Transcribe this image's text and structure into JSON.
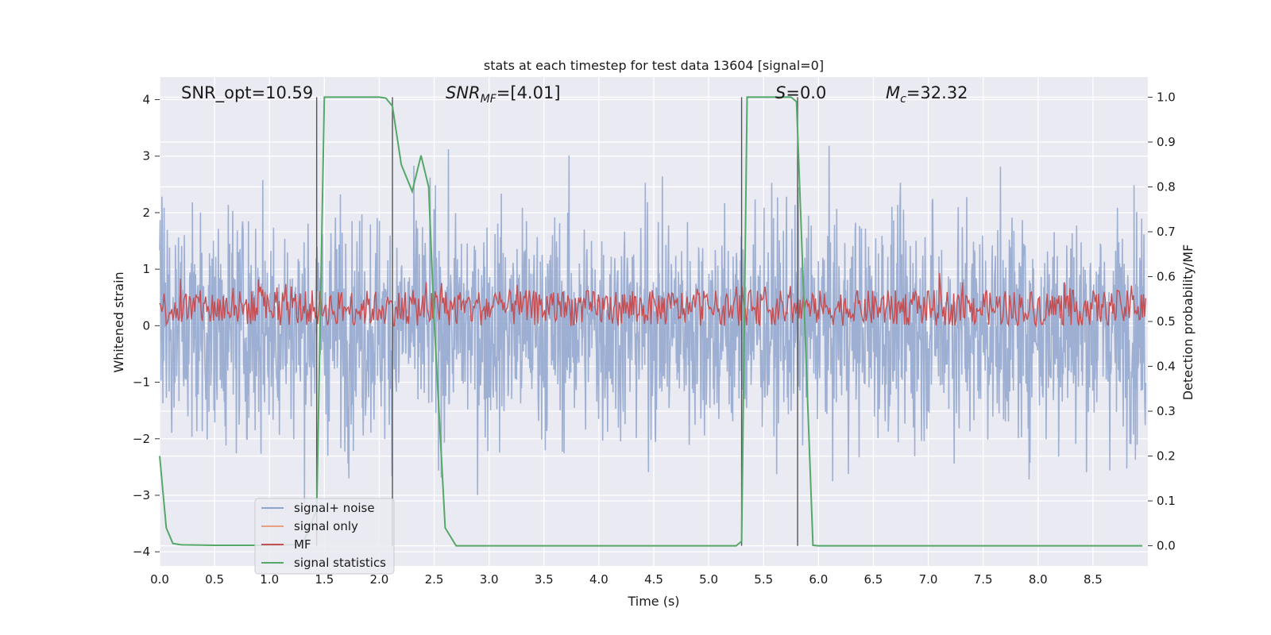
{
  "chart_data": {
    "type": "line",
    "title": "stats at each timestep for test data 13604 [signal=0]",
    "xlabel": "Time (s)",
    "ylabel": "Whitened strain",
    "y2label": "Detection probability/MF",
    "xlim": [
      0.0,
      9.0
    ],
    "ylim": [
      -4.25,
      4.4
    ],
    "y2lim": [
      -0.045,
      1.045
    ],
    "xticks": [
      "0.0",
      "0.5",
      "1.0",
      "1.5",
      "2.0",
      "2.5",
      "3.0",
      "3.5",
      "4.0",
      "4.5",
      "5.0",
      "5.5",
      "6.0",
      "6.5",
      "7.0",
      "7.5",
      "8.0",
      "8.5"
    ],
    "yticks": [
      "4",
      "3",
      "2",
      "1",
      "0",
      "−1",
      "−2",
      "−3",
      "−4"
    ],
    "y2ticks": [
      "1.0",
      "0.9",
      "0.8",
      "0.7",
      "0.6",
      "0.5",
      "0.4",
      "0.3",
      "0.2",
      "0.1",
      "0.0"
    ],
    "grid": true,
    "legend_position": "lower-left",
    "annotations": [
      {
        "text": "SNR_opt=10.59"
      },
      {
        "text": "SNR_MF=[4.01]"
      },
      {
        "text": "S=0.0"
      },
      {
        "text": "M_c=32.32"
      }
    ],
    "series": [
      {
        "name": "signal+ noise",
        "axis": "left",
        "color": "#8fa4cc",
        "description_envelope": {
          "typical_range": [
            -1.6,
            1.7
          ],
          "peak_range": [
            -3.8,
            3.4
          ]
        }
      },
      {
        "name": "signal only",
        "axis": "left",
        "color": "#e8a17f",
        "x": [],
        "y": []
      },
      {
        "name": "MF",
        "axis": "right",
        "color": "#c44e52",
        "typical_range": [
          0.5,
          0.58
        ]
      },
      {
        "name": "signal statistics",
        "axis": "right",
        "color": "#55a868",
        "x": [
          0.0,
          0.06,
          0.12,
          0.2,
          0.5,
          1.0,
          1.3,
          1.43,
          1.5,
          1.55,
          1.7,
          2.0,
          2.06,
          2.12,
          2.2,
          2.3,
          2.38,
          2.45,
          2.5,
          2.6,
          2.7,
          3.0,
          4.0,
          5.0,
          5.25,
          5.3,
          5.35,
          5.4,
          5.5,
          5.75,
          5.8,
          5.95,
          6.0,
          7.0,
          8.0,
          8.95
        ],
        "y": [
          0.2,
          0.04,
          0.005,
          0.002,
          0.001,
          0.001,
          0.003,
          0.08,
          1.0,
          1.0,
          1.0,
          1.0,
          0.998,
          0.98,
          0.85,
          0.79,
          0.87,
          0.8,
          0.5,
          0.04,
          0.0,
          0.0,
          0.0,
          0.0,
          0.0,
          0.01,
          1.0,
          1.0,
          1.0,
          1.0,
          0.99,
          0.001,
          0.0,
          0.0,
          0.0,
          0.0
        ]
      }
    ],
    "vertical_lines_x": [
      1.43,
      2.12,
      5.3,
      5.81
    ]
  },
  "legend": [
    {
      "label": "signal+ noise",
      "color": "#8fa4cc"
    },
    {
      "label": "signal only",
      "color": "#e8a17f"
    },
    {
      "label": "MF",
      "color": "#c44e52"
    },
    {
      "label": "signal statistics",
      "color": "#55a868"
    }
  ]
}
